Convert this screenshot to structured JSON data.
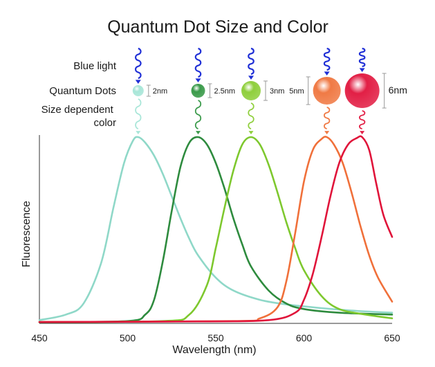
{
  "chart_data": {
    "type": "line",
    "title": "Quantum Dot Size and Color",
    "xlabel": "Wavelength (nm)",
    "ylabel": "Fluorescence",
    "xlim": [
      450,
      650
    ],
    "ylim": [
      0,
      1
    ],
    "xticks": [
      450,
      500,
      550,
      600,
      650
    ],
    "grid": false,
    "y_ticks_shown": false,
    "annotations": {
      "row_labels": [
        "Blue light",
        "Quantum Dots",
        "Size dependent color"
      ],
      "excitation": "blue wavy arrows above each dot"
    },
    "dots": [
      {
        "size_label": "2nm",
        "color": "#a8e6d8",
        "peak_nm": 506
      },
      {
        "size_label": "2.5nm",
        "color": "#3a9a4a",
        "peak_nm": 540
      },
      {
        "size_label": "3nm",
        "color": "#8fcf3c",
        "peak_nm": 570
      },
      {
        "size_label": "5nm",
        "color": "#f07a45",
        "peak_nm": 613
      },
      {
        "size_label": "6nm",
        "color": "#e21f45",
        "peak_nm": 633
      }
    ],
    "series": [
      {
        "color": "#8fd8c8",
        "x": [
          450,
          465,
          475,
          485,
          492,
          498,
          503,
          506,
          510,
          515,
          520,
          525,
          530,
          535,
          540,
          550,
          560,
          575,
          590,
          610,
          630,
          650
        ],
        "y": [
          0.01,
          0.04,
          0.1,
          0.32,
          0.62,
          0.86,
          0.98,
          1.0,
          0.97,
          0.9,
          0.8,
          0.68,
          0.56,
          0.45,
          0.36,
          0.24,
          0.17,
          0.12,
          0.095,
          0.075,
          0.06,
          0.05
        ]
      },
      {
        "color": "#2e8b3e",
        "x": [
          450,
          500,
          510,
          515,
          520,
          525,
          530,
          535,
          540,
          545,
          550,
          555,
          560,
          565,
          570,
          580,
          590,
          600,
          620,
          650
        ],
        "y": [
          0.0,
          0.005,
          0.04,
          0.12,
          0.33,
          0.6,
          0.84,
          0.97,
          1.0,
          0.96,
          0.86,
          0.72,
          0.56,
          0.42,
          0.3,
          0.17,
          0.1,
          0.07,
          0.05,
          0.04
        ]
      },
      {
        "color": "#7ec82e",
        "x": [
          450,
          520,
          535,
          545,
          550,
          555,
          560,
          565,
          570,
          575,
          580,
          585,
          590,
          595,
          600,
          610,
          620,
          635,
          650
        ],
        "y": [
          0.0,
          0.005,
          0.04,
          0.2,
          0.4,
          0.62,
          0.82,
          0.96,
          1.0,
          0.96,
          0.85,
          0.7,
          0.54,
          0.4,
          0.28,
          0.14,
          0.07,
          0.04,
          0.02
        ]
      },
      {
        "color": "#f0703a",
        "x": [
          450,
          560,
          575,
          585,
          590,
          595,
          600,
          605,
          610,
          613,
          617,
          622,
          627,
          632,
          637,
          642,
          650
        ],
        "y": [
          0.0,
          0.005,
          0.02,
          0.08,
          0.22,
          0.48,
          0.76,
          0.93,
          0.99,
          1.0,
          0.96,
          0.86,
          0.7,
          0.52,
          0.36,
          0.24,
          0.11
        ]
      },
      {
        "color": "#e0143a",
        "x": [
          450,
          540,
          580,
          595,
          600,
          605,
          610,
          615,
          620,
          625,
          630,
          633,
          637,
          641,
          645,
          650
        ],
        "y": [
          0.0,
          0.003,
          0.01,
          0.05,
          0.12,
          0.26,
          0.46,
          0.68,
          0.86,
          0.96,
          0.995,
          1.0,
          0.93,
          0.75,
          0.58,
          0.46
        ]
      }
    ]
  }
}
